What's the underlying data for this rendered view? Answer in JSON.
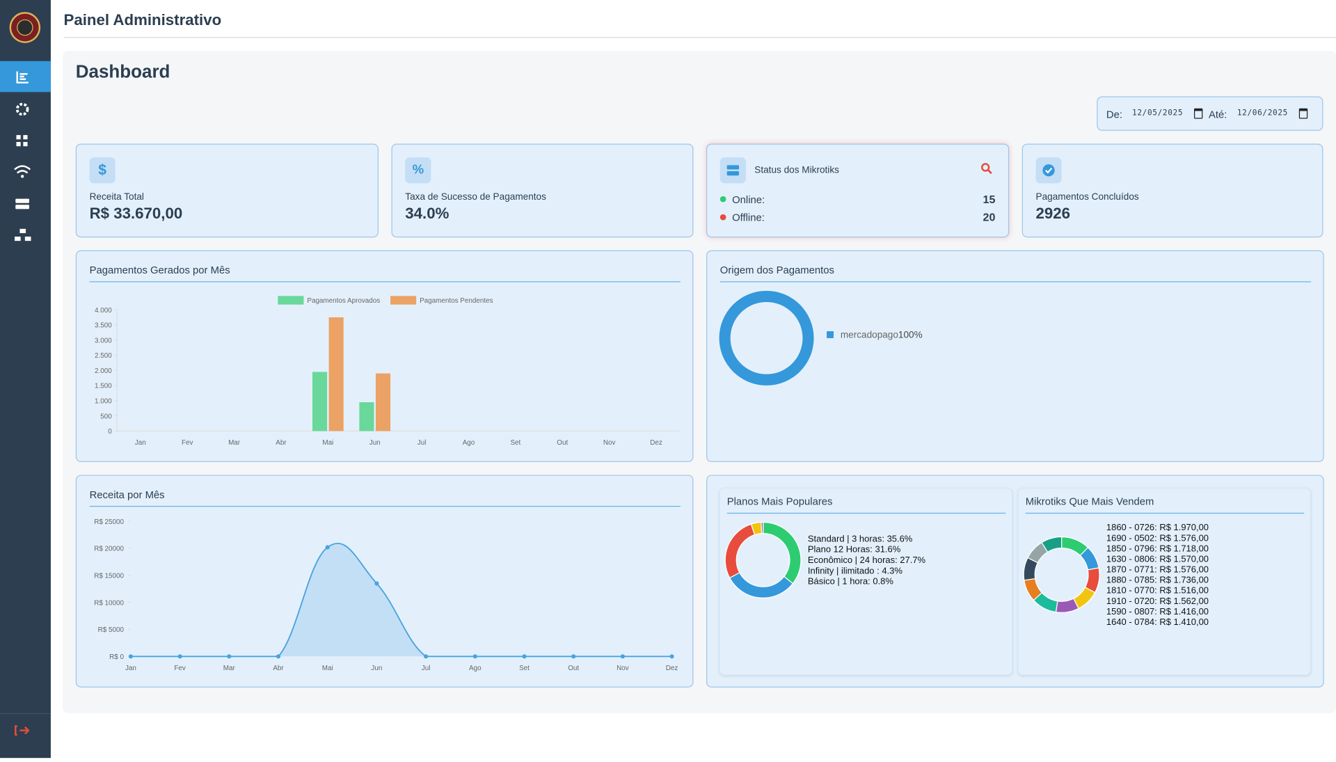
{
  "header": {
    "title": "Painel Administrativo"
  },
  "page": {
    "title": "Dashboard"
  },
  "filter": {
    "from_label": "De:",
    "from": "12/05/2025",
    "to_label": "Até:",
    "to": "12/06/2025"
  },
  "cards": [
    {
      "label": "Receita Total",
      "value": "R$ 33.670,00"
    },
    {
      "label": "Taxa de Sucesso de Pagamentos",
      "value": "34.0%"
    },
    {
      "label": "Pagamentos Concluídos",
      "value": "2926"
    }
  ],
  "mikrotik_status": {
    "title": "Status dos Mikrotiks",
    "online_label": "Online:",
    "online": "15",
    "offline_label": "Offline:",
    "offline": "20"
  },
  "chart_data": [
    {
      "type": "bar",
      "title": "Pagamentos Gerados por Mês",
      "categories": [
        "Jan",
        "Fev",
        "Mar",
        "Abr",
        "Mai",
        "Jun",
        "Jul",
        "Ago",
        "Set",
        "Out",
        "Nov",
        "Dez"
      ],
      "series": [
        {
          "name": "Pagamentos Aprovados",
          "color": "#6ad89a",
          "values": [
            0,
            0,
            0,
            0,
            1950,
            950,
            0,
            0,
            0,
            0,
            0,
            0
          ]
        },
        {
          "name": "Pagamentos Pendentes",
          "color": "#eba264",
          "values": [
            0,
            0,
            0,
            0,
            3750,
            1900,
            0,
            0,
            0,
            0,
            0,
            0
          ]
        }
      ],
      "ylim": [
        0,
        4000
      ],
      "yticks": [
        0,
        500,
        {
          "value": 1000,
          "label": "1.000"
        },
        {
          "value": 1500,
          "label": "1.500"
        },
        {
          "value": 2000,
          "label": "2.000"
        },
        {
          "value": 2500,
          "label": "2.500"
        },
        {
          "value": 3000,
          "label": "3.000"
        },
        {
          "value": 3500,
          "label": "3.500"
        },
        {
          "value": 4000,
          "label": "4.000"
        }
      ],
      "legend": "top"
    },
    {
      "type": "doughnut",
      "title": "Origem dos Pagamentos",
      "categories": [
        "mercadopago"
      ],
      "values": [
        100
      ],
      "value_labels": [
        "100%"
      ],
      "colors": [
        "#3498db"
      ]
    },
    {
      "type": "line",
      "title": "Receita por Mês",
      "categories": [
        "Jan",
        "Fev",
        "Mar",
        "Abr",
        "Mai",
        "Jun",
        "Jul",
        "Ago",
        "Set",
        "Out",
        "Nov",
        "Dez"
      ],
      "series": [
        {
          "name": "Receita",
          "color": "#4aa3df",
          "values": [
            0,
            0,
            0,
            0,
            20200,
            13500,
            0,
            0,
            0,
            0,
            0,
            0
          ]
        }
      ],
      "ylim": [
        0,
        25000
      ],
      "yticks": [
        {
          "value": 0,
          "label": "R$ 0"
        },
        {
          "value": 5000,
          "label": "R$ 5000"
        },
        {
          "value": 10000,
          "label": "R$ 10000"
        },
        {
          "value": 15000,
          "label": "R$ 15000"
        },
        {
          "value": 20000,
          "label": "R$ 20000"
        },
        {
          "value": 25000,
          "label": "R$ 25000"
        }
      ]
    },
    {
      "type": "doughnut",
      "title": "Planos Mais Populares",
      "categories": [
        "Standard | 3 horas: 35.6%",
        "Plano 12 Horas: 31.6%",
        "Econômico | 24 horas: 27.7%",
        "Infinity | ilimitado : 4.3%",
        "Básico | 1 hora: 0.8%"
      ],
      "values": [
        35.6,
        31.6,
        27.7,
        4.3,
        0.8
      ],
      "colors": [
        "#2ecc71",
        "#3498db",
        "#e74c3c",
        "#f1c40f",
        "#9b59b6"
      ]
    },
    {
      "type": "doughnut",
      "title": "Mikrotiks Que Mais Vendem",
      "categories": [
        "1860 - 0726: R$ 1.970,00",
        "1690 - 0502: R$ 1.576,00",
        "1850 - 0796: R$ 1.718,00",
        "1630 - 0806: R$ 1.570,00",
        "1870 - 0771: R$ 1.576,00",
        "1880 - 0785: R$ 1.736,00",
        "1810 - 0770: R$ 1.516,00",
        "1910 - 0720: R$ 1.562,00",
        "1590 - 0807: R$ 1.416,00",
        "1640 - 0784: R$ 1.410,00"
      ],
      "values": [
        1970,
        1576,
        1718,
        1570,
        1576,
        1736,
        1516,
        1562,
        1416,
        1410
      ],
      "colors": [
        "#2ecc71",
        "#3498db",
        "#e74c3c",
        "#f1c40f",
        "#9b59b6",
        "#1abc9c",
        "#e67e22",
        "#34495e",
        "#95a5a6",
        "#16a085"
      ]
    }
  ]
}
